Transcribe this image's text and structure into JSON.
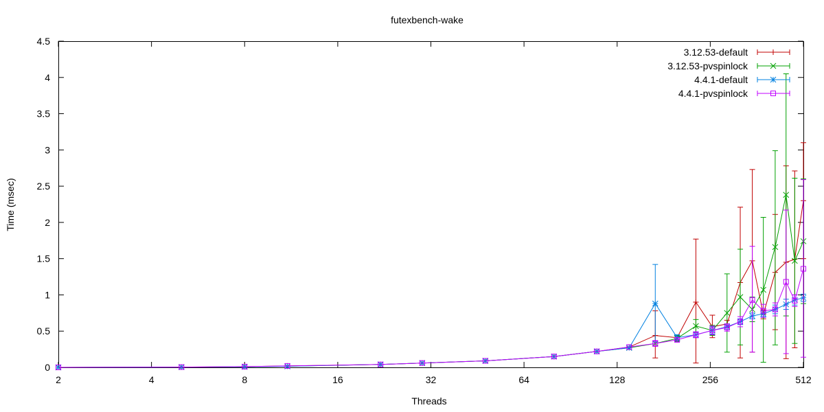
{
  "chart_data": {
    "type": "line",
    "title": "futexbench-wake",
    "xlabel": "Threads",
    "ylabel": "Time (msec)",
    "x_scale": "log2",
    "xlim": [
      2,
      512
    ],
    "ylim": [
      0,
      4.5
    ],
    "x_ticks": [
      2,
      4,
      8,
      16,
      32,
      64,
      128,
      256,
      512
    ],
    "x_tick_labels": [
      "2",
      "4",
      "8",
      "16",
      "32",
      "64",
      "128",
      "256",
      "512"
    ],
    "y_ticks": [
      0,
      0.5,
      1,
      1.5,
      2,
      2.5,
      3,
      3.5,
      4,
      4.5
    ],
    "y_tick_labels": [
      "0",
      "0.5",
      "1",
      "1.5",
      "2",
      "2.5",
      "3",
      "3.5",
      "4",
      "4.5"
    ],
    "grid": false,
    "legend_position": "top-right",
    "series": [
      {
        "name": "3.12.53-default",
        "color": "#c00000",
        "marker": "plus",
        "points": [
          {
            "x": 2,
            "y": 0.0
          },
          {
            "x": 5,
            "y": 0.004
          },
          {
            "x": 8,
            "y": 0.01
          },
          {
            "x": 11,
            "y": 0.02
          },
          {
            "x": 22,
            "y": 0.04
          },
          {
            "x": 30,
            "y": 0.06
          },
          {
            "x": 48,
            "y": 0.09
          },
          {
            "x": 80,
            "y": 0.15
          },
          {
            "x": 110,
            "y": 0.22
          },
          {
            "x": 140,
            "y": 0.28
          },
          {
            "x": 170,
            "y": 0.44,
            "lo": 0.13,
            "hi": 0.78
          },
          {
            "x": 200,
            "y": 0.41,
            "lo": 0.37,
            "hi": 0.45
          },
          {
            "x": 230,
            "y": 0.9,
            "lo": 0.06,
            "hi": 1.77
          },
          {
            "x": 260,
            "y": 0.56,
            "lo": 0.41,
            "hi": 0.72
          },
          {
            "x": 290,
            "y": 0.6,
            "lo": 0.55,
            "hi": 0.65
          },
          {
            "x": 320,
            "y": 1.17,
            "lo": 0.13,
            "hi": 2.21
          },
          {
            "x": 350,
            "y": 1.47,
            "lo": 0.21,
            "hi": 2.73
          },
          {
            "x": 380,
            "y": 0.73,
            "lo": 0.67,
            "hi": 0.79
          },
          {
            "x": 415,
            "y": 1.31,
            "lo": 0.52,
            "hi": 2.11
          },
          {
            "x": 450,
            "y": 1.45,
            "lo": 0.12,
            "hi": 2.78
          },
          {
            "x": 480,
            "y": 1.49,
            "lo": 0.27,
            "hi": 2.71
          },
          {
            "x": 512,
            "y": 2.3,
            "lo": 1.5,
            "hi": 3.1
          }
        ]
      },
      {
        "name": "3.12.53-pvspinlock",
        "color": "#00a000",
        "marker": "cross",
        "points": [
          {
            "x": 2,
            "y": 0.0
          },
          {
            "x": 5,
            "y": 0.004
          },
          {
            "x": 8,
            "y": 0.008
          },
          {
            "x": 11,
            "y": 0.015
          },
          {
            "x": 22,
            "y": 0.04
          },
          {
            "x": 30,
            "y": 0.06
          },
          {
            "x": 48,
            "y": 0.09
          },
          {
            "x": 80,
            "y": 0.15
          },
          {
            "x": 110,
            "y": 0.22
          },
          {
            "x": 140,
            "y": 0.27
          },
          {
            "x": 170,
            "y": 0.33
          },
          {
            "x": 200,
            "y": 0.4,
            "lo": 0.36,
            "hi": 0.44
          },
          {
            "x": 230,
            "y": 0.57,
            "lo": 0.48,
            "hi": 0.66
          },
          {
            "x": 260,
            "y": 0.51,
            "lo": 0.44,
            "hi": 0.58
          },
          {
            "x": 290,
            "y": 0.75,
            "lo": 0.21,
            "hi": 1.29
          },
          {
            "x": 320,
            "y": 0.97,
            "lo": 0.31,
            "hi": 1.63
          },
          {
            "x": 350,
            "y": 0.8,
            "lo": 0.63,
            "hi": 0.97
          },
          {
            "x": 380,
            "y": 1.07,
            "lo": 0.07,
            "hi": 2.07
          },
          {
            "x": 415,
            "y": 1.66,
            "lo": 0.31,
            "hi": 2.99
          },
          {
            "x": 450,
            "y": 2.38,
            "lo": 0.71,
            "hi": 4.05
          },
          {
            "x": 480,
            "y": 1.47,
            "lo": 0.33,
            "hi": 2.61
          },
          {
            "x": 512,
            "y": 1.74,
            "lo": 0.88,
            "hi": 2.6
          }
        ]
      },
      {
        "name": "4.4.1-default",
        "color": "#0080e0",
        "marker": "star",
        "points": [
          {
            "x": 2,
            "y": 0.0
          },
          {
            "x": 5,
            "y": 0.004
          },
          {
            "x": 8,
            "y": 0.008
          },
          {
            "x": 11,
            "y": 0.015
          },
          {
            "x": 22,
            "y": 0.04
          },
          {
            "x": 30,
            "y": 0.06
          },
          {
            "x": 48,
            "y": 0.09
          },
          {
            "x": 80,
            "y": 0.15
          },
          {
            "x": 110,
            "y": 0.22
          },
          {
            "x": 140,
            "y": 0.27
          },
          {
            "x": 170,
            "y": 0.88,
            "lo": 0.35,
            "hi": 1.42
          },
          {
            "x": 200,
            "y": 0.41,
            "lo": 0.37,
            "hi": 0.45
          },
          {
            "x": 230,
            "y": 0.45,
            "lo": 0.41,
            "hi": 0.49
          },
          {
            "x": 260,
            "y": 0.51,
            "lo": 0.46,
            "hi": 0.56
          },
          {
            "x": 290,
            "y": 0.56,
            "lo": 0.52,
            "hi": 0.6
          },
          {
            "x": 320,
            "y": 0.63,
            "lo": 0.59,
            "hi": 0.67
          },
          {
            "x": 350,
            "y": 0.71,
            "lo": 0.67,
            "hi": 0.75
          },
          {
            "x": 380,
            "y": 0.74,
            "lo": 0.7,
            "hi": 0.78
          },
          {
            "x": 415,
            "y": 0.8,
            "lo": 0.74,
            "hi": 0.86
          },
          {
            "x": 450,
            "y": 0.87,
            "lo": 0.8,
            "hi": 0.94
          },
          {
            "x": 480,
            "y": 0.93,
            "lo": 0.86,
            "hi": 1.0
          },
          {
            "x": 512,
            "y": 0.96,
            "lo": 0.91,
            "hi": 1.01
          }
        ]
      },
      {
        "name": "4.4.1-pvspinlock",
        "color": "#c000ff",
        "marker": "square",
        "points": [
          {
            "x": 2,
            "y": 0.0
          },
          {
            "x": 5,
            "y": 0.004
          },
          {
            "x": 8,
            "y": 0.01
          },
          {
            "x": 11,
            "y": 0.02
          },
          {
            "x": 22,
            "y": 0.04
          },
          {
            "x": 30,
            "y": 0.06
          },
          {
            "x": 48,
            "y": 0.09
          },
          {
            "x": 80,
            "y": 0.15
          },
          {
            "x": 110,
            "y": 0.22
          },
          {
            "x": 140,
            "y": 0.28
          },
          {
            "x": 170,
            "y": 0.33,
            "lo": 0.29,
            "hi": 0.37
          },
          {
            "x": 200,
            "y": 0.38,
            "lo": 0.35,
            "hi": 0.41
          },
          {
            "x": 230,
            "y": 0.45,
            "lo": 0.41,
            "hi": 0.49
          },
          {
            "x": 260,
            "y": 0.51,
            "lo": 0.45,
            "hi": 0.57
          },
          {
            "x": 290,
            "y": 0.55,
            "lo": 0.5,
            "hi": 0.6
          },
          {
            "x": 320,
            "y": 0.63,
            "lo": 0.56,
            "hi": 0.7
          },
          {
            "x": 350,
            "y": 0.93,
            "lo": 0.21,
            "hi": 1.67
          },
          {
            "x": 380,
            "y": 0.78,
            "lo": 0.69,
            "hi": 0.87
          },
          {
            "x": 415,
            "y": 0.8,
            "lo": 0.71,
            "hi": 0.89
          },
          {
            "x": 450,
            "y": 1.18,
            "lo": 0.19,
            "hi": 2.17
          },
          {
            "x": 480,
            "y": 0.92,
            "lo": 0.84,
            "hi": 1.0
          },
          {
            "x": 512,
            "y": 1.36,
            "lo": 0.14,
            "hi": 2.59
          }
        ]
      }
    ]
  }
}
